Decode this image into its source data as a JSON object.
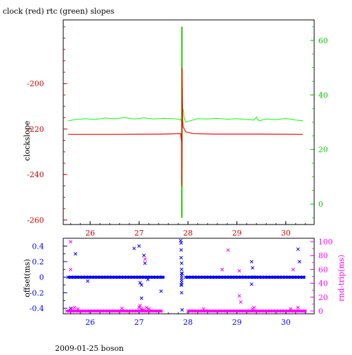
{
  "title": "clock (red) rtc (green) slopes",
  "footer": "2009-01-25 boson",
  "colors": {
    "clock": "#ff0000",
    "rtc": "#00ff00",
    "clock_axis": "#cc0000",
    "rtc_axis": "#00cc00",
    "offset": "#0000ff",
    "roundtrip": "#ff00ff",
    "frame": "#000000",
    "spike": "#556b00"
  },
  "chart_data": [
    {
      "type": "line",
      "title": "clock (red) rtc (green) slopes",
      "ylabel": "clockslope",
      "ylabel_right": "",
      "xlim": [
        25.45,
        30.58
      ],
      "ylim": [
        -262,
        -172
      ],
      "y2lim": [
        -7.5,
        67.5
      ],
      "x_ticks": [
        26,
        27,
        28,
        29,
        30
      ],
      "y_ticks": [
        -260,
        -240,
        -220,
        -200
      ],
      "y2_ticks": [
        0,
        20,
        40,
        60
      ],
      "grid": false,
      "legend": "in title",
      "series": [
        {
          "axis": "left",
          "color": "#ff0000",
          "points": [
            [
              25.55,
              -222.3
            ],
            [
              26.5,
              -222.3
            ],
            [
              27.5,
              -222.2
            ],
            [
              27.85,
              -222.0
            ],
            [
              27.87,
              -226
            ],
            [
              27.875,
              -245
            ],
            [
              27.88,
              -193
            ],
            [
              27.885,
              -205
            ],
            [
              27.89,
              -216
            ],
            [
              27.9,
              -219
            ],
            [
              27.95,
              -221.2
            ],
            [
              28.1,
              -222.0
            ],
            [
              28.5,
              -222.2
            ],
            [
              29.5,
              -222.2
            ],
            [
              30.35,
              -222.3
            ]
          ]
        },
        {
          "axis": "right",
          "color": "#00ff00",
          "points": [
            [
              25.55,
              30.5
            ],
            [
              25.7,
              31
            ],
            [
              25.9,
              31.3
            ],
            [
              26.1,
              31
            ],
            [
              26.3,
              31.5
            ],
            [
              26.5,
              31.3
            ],
            [
              26.7,
              31.7
            ],
            [
              26.9,
              31.2
            ],
            [
              27.1,
              31.6
            ],
            [
              27.3,
              31.2
            ],
            [
              27.5,
              31.4
            ],
            [
              27.7,
              31.3
            ],
            [
              27.85,
              31
            ],
            [
              27.87,
              30
            ],
            [
              27.875,
              65
            ],
            [
              27.88,
              -5
            ],
            [
              27.885,
              33
            ],
            [
              27.9,
              35
            ],
            [
              27.92,
              32
            ],
            [
              27.95,
              30
            ],
            [
              28.0,
              30.3
            ],
            [
              28.2,
              31.3
            ],
            [
              28.4,
              31.2
            ],
            [
              28.6,
              31.4
            ],
            [
              28.8,
              31.1
            ],
            [
              29.0,
              31.3
            ],
            [
              29.2,
              31
            ],
            [
              29.35,
              30.8
            ],
            [
              29.4,
              31.9
            ],
            [
              29.45,
              30.5
            ],
            [
              29.6,
              31.2
            ],
            [
              29.8,
              30.9
            ],
            [
              30.0,
              31.4
            ],
            [
              30.2,
              30.8
            ],
            [
              30.35,
              30.6
            ]
          ]
        }
      ]
    },
    {
      "type": "scatter",
      "ylabel": "offset(ms)",
      "ylabel_right": "rnd-trip(ms)",
      "xlim": [
        25.45,
        30.58
      ],
      "ylim": [
        -0.47,
        0.5
      ],
      "y2lim": [
        -4,
        105
      ],
      "x_ticks": [
        26,
        27,
        28,
        29,
        30
      ],
      "y_ticks": [
        -0.4,
        -0.2,
        0,
        0.2,
        0.4
      ],
      "y2_ticks": [
        0,
        20,
        40,
        60,
        80,
        100
      ],
      "grid": false,
      "marker": "x",
      "series": [
        {
          "name": "offset",
          "axis": "left",
          "color": "#0000ff",
          "bands": [
            [
              25.55,
              27.52,
              0.0
            ],
            [
              27.95,
              30.4,
              0.0
            ]
          ],
          "outliers": [
            [
              25.6,
              -0.4
            ],
            [
              25.7,
              0.3
            ],
            [
              25.95,
              -0.05
            ],
            [
              26.9,
              0.37
            ],
            [
              27.0,
              0.4
            ],
            [
              27.02,
              -0.07
            ],
            [
              27.05,
              -0.1
            ],
            [
              27.05,
              -0.27
            ],
            [
              27.1,
              0.28
            ],
            [
              27.12,
              0.18
            ],
            [
              27.18,
              -0.03
            ],
            [
              27.45,
              -0.18
            ],
            [
              27.85,
              0.47
            ],
            [
              27.86,
              0.44
            ],
            [
              27.86,
              0.35
            ],
            [
              27.86,
              0.25
            ],
            [
              27.87,
              0.18
            ],
            [
              27.87,
              0.1
            ],
            [
              27.88,
              0.05
            ],
            [
              27.86,
              -0.1
            ],
            [
              27.87,
              -0.2
            ],
            [
              27.88,
              -0.42
            ],
            [
              29.3,
              0.2
            ],
            [
              29.3,
              -0.09
            ],
            [
              29.32,
              0.12
            ],
            [
              29.35,
              0.0
            ],
            [
              30.25,
              0.36
            ],
            [
              30.28,
              0.2
            ]
          ]
        },
        {
          "name": "rnd-trip",
          "axis": "right",
          "color": "#ff00ff",
          "bands": [
            [
              25.52,
              27.48,
              0.0
            ],
            [
              28.0,
              30.42,
              0.0
            ]
          ],
          "outliers": [
            [
              25.6,
              100
            ],
            [
              25.6,
              60
            ],
            [
              25.62,
              3
            ],
            [
              25.68,
              5
            ],
            [
              25.75,
              3
            ],
            [
              26.65,
              4
            ],
            [
              27.0,
              5
            ],
            [
              27.02,
              8
            ],
            [
              27.05,
              3
            ],
            [
              27.08,
              2
            ],
            [
              27.12,
              75
            ],
            [
              27.15,
              5
            ],
            [
              27.2,
              3
            ],
            [
              28.32,
              3
            ],
            [
              28.7,
              60
            ],
            [
              28.82,
              88
            ],
            [
              29.05,
              58
            ],
            [
              29.05,
              22
            ],
            [
              29.08,
              13
            ],
            [
              29.32,
              3
            ],
            [
              29.35,
              5
            ],
            [
              30.1,
              3
            ],
            [
              30.15,
              60
            ],
            [
              30.25,
              5
            ]
          ]
        }
      ]
    }
  ]
}
